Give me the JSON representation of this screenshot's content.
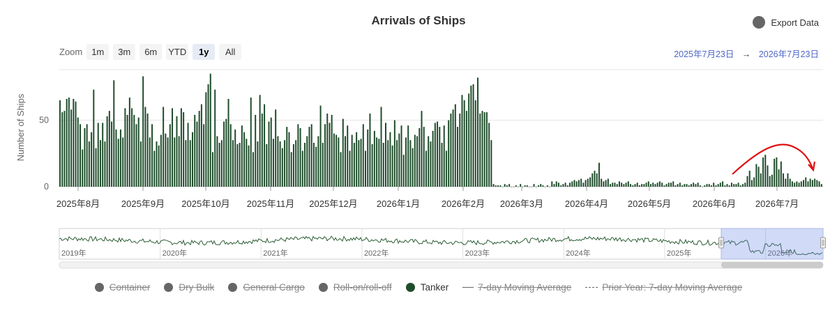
{
  "title": "Arrivals of Ships",
  "export_label": "Export Data",
  "zoom": {
    "label": "Zoom",
    "buttons": [
      "1m",
      "3m",
      "6m",
      "YTD",
      "1y",
      "All"
    ],
    "active": "1y"
  },
  "range": {
    "from": "2025年7月23日",
    "arrow": "→",
    "to": "2026年7月23日"
  },
  "colors": {
    "bar": "#1f4d2b",
    "navigator_line": "#2d5e35",
    "accent_arrow": "#e01010",
    "grid": "#e6e6e6"
  },
  "legend": [
    {
      "label": "Container",
      "color": "#666666",
      "enabled": false,
      "symbol": "dot"
    },
    {
      "label": "Dry Bulk",
      "color": "#666666",
      "enabled": false,
      "symbol": "dot"
    },
    {
      "label": "General Cargo",
      "color": "#666666",
      "enabled": false,
      "symbol": "dot"
    },
    {
      "label": "Roll-on/roll-off",
      "color": "#666666",
      "enabled": false,
      "symbol": "dot"
    },
    {
      "label": "Tanker",
      "color": "#1f4d2b",
      "enabled": true,
      "symbol": "dot"
    },
    {
      "label": "7-day Moving Average",
      "color": "#666666",
      "enabled": false,
      "symbol": "line"
    },
    {
      "label": "Prior Year: 7-day Moving Average",
      "color": "#666666",
      "enabled": false,
      "symbol": "dash"
    }
  ],
  "chart_data": {
    "type": "bar",
    "ylabel": "Number of Ships",
    "ylim": [
      0,
      88
    ],
    "yticks": [
      0,
      50
    ],
    "grid": true,
    "x_range": [
      "2025-07-23",
      "2026-07-23"
    ],
    "xtick_labels": [
      "2025年8月",
      "2025年9月",
      "2025年10月",
      "2025年11月",
      "2025年12月",
      "2026年1月",
      "2026年2月",
      "2026年3月",
      "2026年4月",
      "2026年5月",
      "2026年6月",
      "2026年7月"
    ],
    "series": [
      {
        "name": "Tanker",
        "values": [
          65,
          56,
          57,
          66,
          67,
          58,
          66,
          64,
          52,
          47,
          28,
          44,
          47,
          34,
          41,
          73,
          29,
          48,
          35,
          48,
          34,
          53,
          57,
          49,
          80,
          43,
          36,
          43,
          37,
          59,
          54,
          67,
          59,
          54,
          47,
          52,
          34,
          83,
          60,
          55,
          37,
          47,
          27,
          34,
          31,
          39,
          60,
          40,
          37,
          47,
          59,
          37,
          53,
          38,
          59,
          56,
          35,
          48,
          35,
          41,
          54,
          49,
          57,
          62,
          47,
          71,
          77,
          85,
          26,
          73,
          38,
          33,
          35,
          49,
          51,
          66,
          47,
          35,
          43,
          32,
          33,
          46,
          41,
          36,
          31,
          67,
          26,
          54,
          34,
          69,
          55,
          62,
          32,
          49,
          52,
          36,
          58,
          38,
          34,
          29,
          35,
          45,
          41,
          26,
          32,
          35,
          47,
          44,
          27,
          33,
          38,
          45,
          47,
          33,
          30,
          38,
          61,
          33,
          47,
          55,
          48,
          54,
          40,
          39,
          37,
          26,
          51,
          38,
          46,
          27,
          39,
          33,
          41,
          35,
          36,
          47,
          27,
          43,
          55,
          32,
          42,
          37,
          36,
          60,
          33,
          48,
          35,
          41,
          31,
          50,
          35,
          40,
          46,
          24,
          37,
          46,
          35,
          29,
          39,
          38,
          44,
          57,
          45,
          27,
          38,
          34,
          42,
          48,
          49,
          45,
          33,
          46,
          27,
          50,
          55,
          58,
          62,
          45,
          55,
          69,
          65,
          57,
          70,
          76,
          77,
          65,
          82,
          55,
          57,
          56,
          56,
          48,
          35,
          2,
          1,
          1,
          1,
          0,
          2,
          1,
          2,
          0,
          0,
          1,
          0,
          2,
          0,
          1,
          1,
          0,
          0,
          2,
          0,
          1,
          2,
          1,
          0,
          1,
          0,
          4,
          2,
          4,
          3,
          1,
          2,
          3,
          1,
          3,
          4,
          5,
          4,
          5,
          6,
          3,
          5,
          6,
          7,
          10,
          12,
          10,
          18,
          6,
          4,
          5,
          6,
          2,
          3,
          3,
          2,
          4,
          3,
          2,
          3,
          4,
          2,
          1,
          2,
          3,
          1,
          2,
          2,
          3,
          4,
          2,
          3,
          2,
          3,
          4,
          3,
          1,
          2,
          3,
          3,
          4,
          1,
          2,
          3,
          1,
          2,
          2,
          1,
          2,
          3,
          2,
          3,
          1,
          0,
          1,
          2,
          2,
          1,
          3,
          1,
          2,
          3,
          4,
          1,
          2,
          1,
          3,
          2,
          2,
          3,
          1,
          2,
          3,
          8,
          12,
          5,
          7,
          17,
          15,
          10,
          22,
          24,
          16,
          8,
          9,
          21,
          22,
          13,
          19,
          10,
          6,
          10,
          6,
          4,
          3,
          4,
          3,
          4,
          5,
          7,
          4,
          6,
          5,
          6,
          5,
          4,
          2
        ]
      }
    ],
    "navigator": {
      "type": "line",
      "x_labels": [
        "2019年",
        "2020年",
        "2021年",
        "2022年",
        "2023年",
        "2024年",
        "2025年",
        "2026年"
      ],
      "selection": [
        "2025-07-23",
        "2026-07-23"
      ]
    },
    "annotation": "red curved arrow over July 2026 peak"
  }
}
